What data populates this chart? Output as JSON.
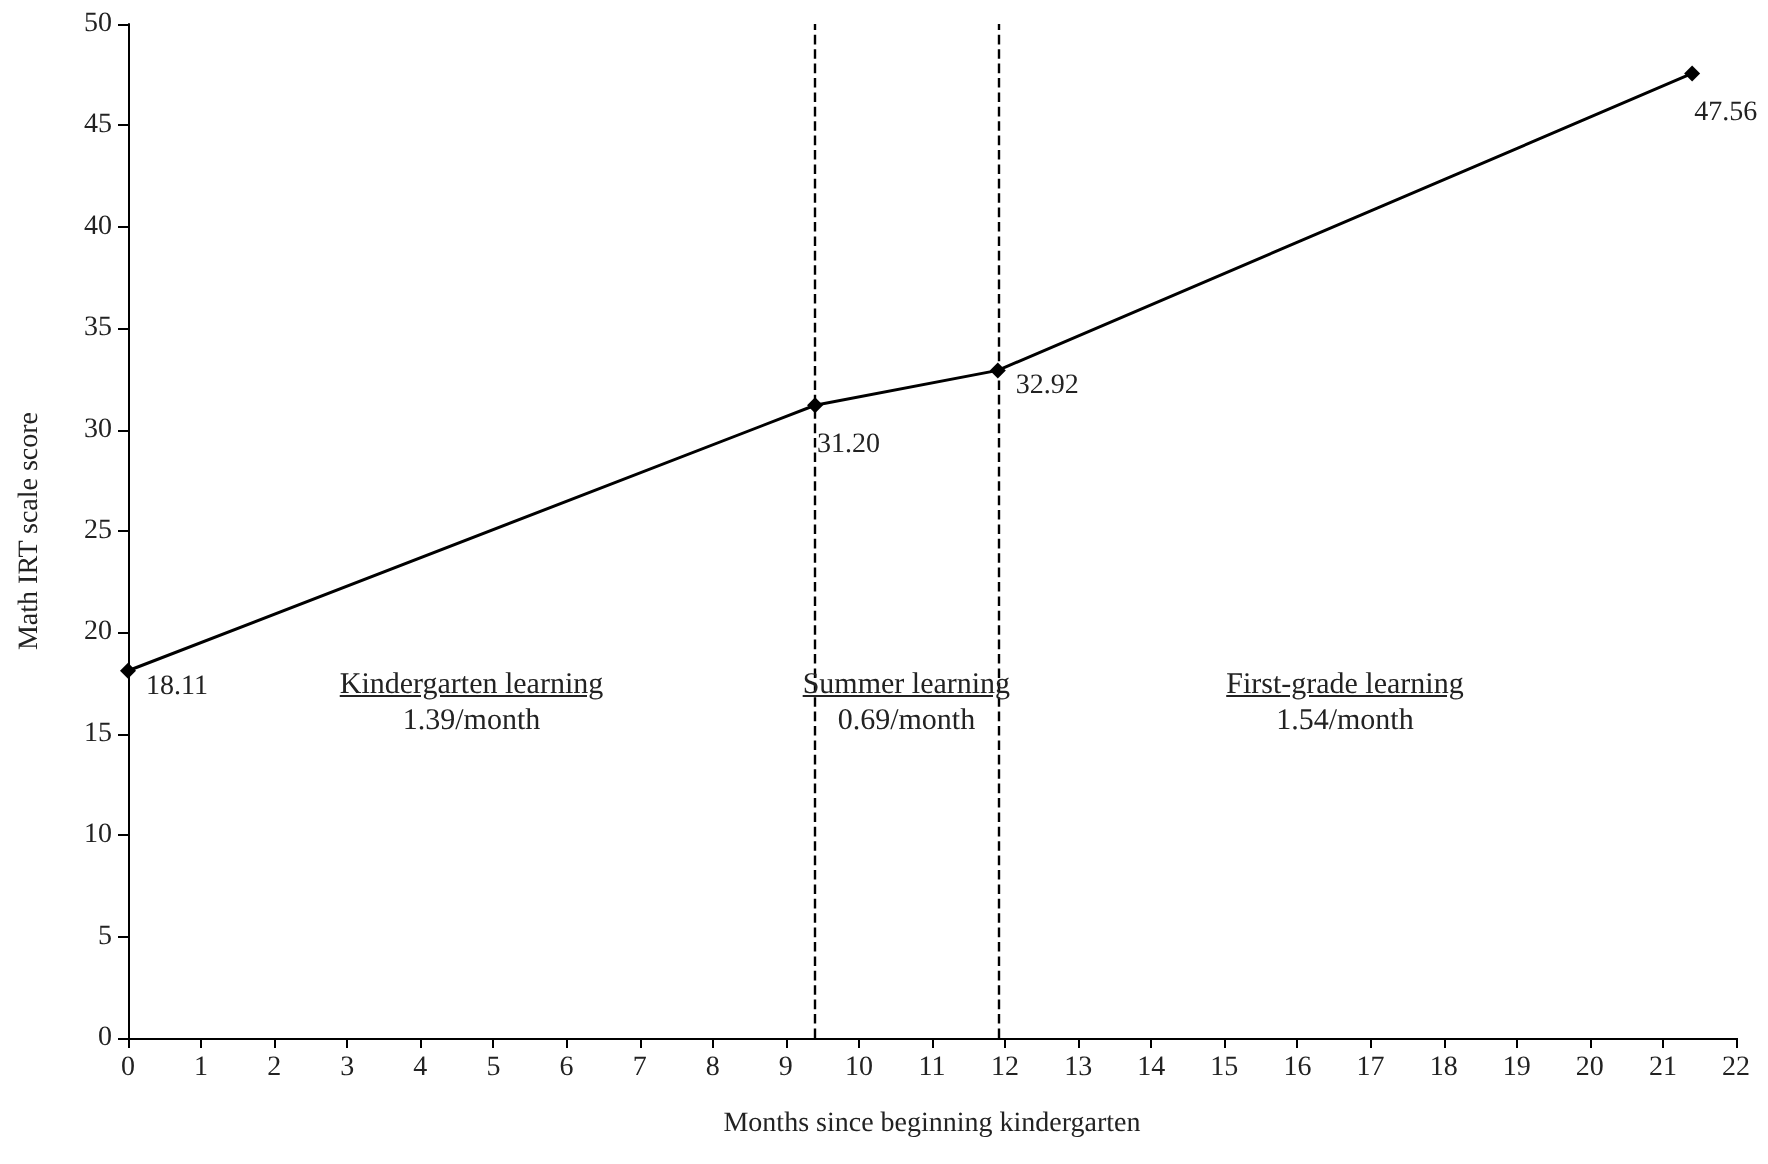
{
  "chart_data": {
    "type": "line",
    "xlabel": "Months since beginning kindergarten",
    "ylabel": "Math IRT scale score",
    "x": [
      0,
      9.4,
      11.9,
      21.4
    ],
    "series": [
      {
        "color": "#000000",
        "values": [
          18.11,
          31.2,
          32.92,
          47.56
        ],
        "value_labels": [
          "18.11",
          "31.20",
          "32.92",
          "47.56"
        ]
      }
    ],
    "xlim": [
      0,
      22
    ],
    "xticks": [
      0,
      1,
      2,
      3,
      4,
      5,
      6,
      7,
      8,
      9,
      10,
      11,
      12,
      13,
      14,
      15,
      16,
      17,
      18,
      19,
      20,
      21,
      22
    ],
    "ylim": [
      0,
      50
    ],
    "yticks": [
      0,
      5,
      10,
      15,
      20,
      25,
      30,
      35,
      40,
      45,
      50
    ],
    "marker": "diamond",
    "line_style": "solid",
    "grid": false,
    "ref_lines": [
      {
        "axis": "x",
        "value": 9.4,
        "color": "#000000",
        "line_style": "dashed"
      },
      {
        "axis": "x",
        "value": 11.9,
        "color": "#000000",
        "line_style": "dashed"
      }
    ],
    "annotations": [
      "Kindergarten learning",
      "1.39/month",
      "Summer learning",
      "0.69/month",
      "First-grade learning",
      "1.54/month"
    ]
  }
}
